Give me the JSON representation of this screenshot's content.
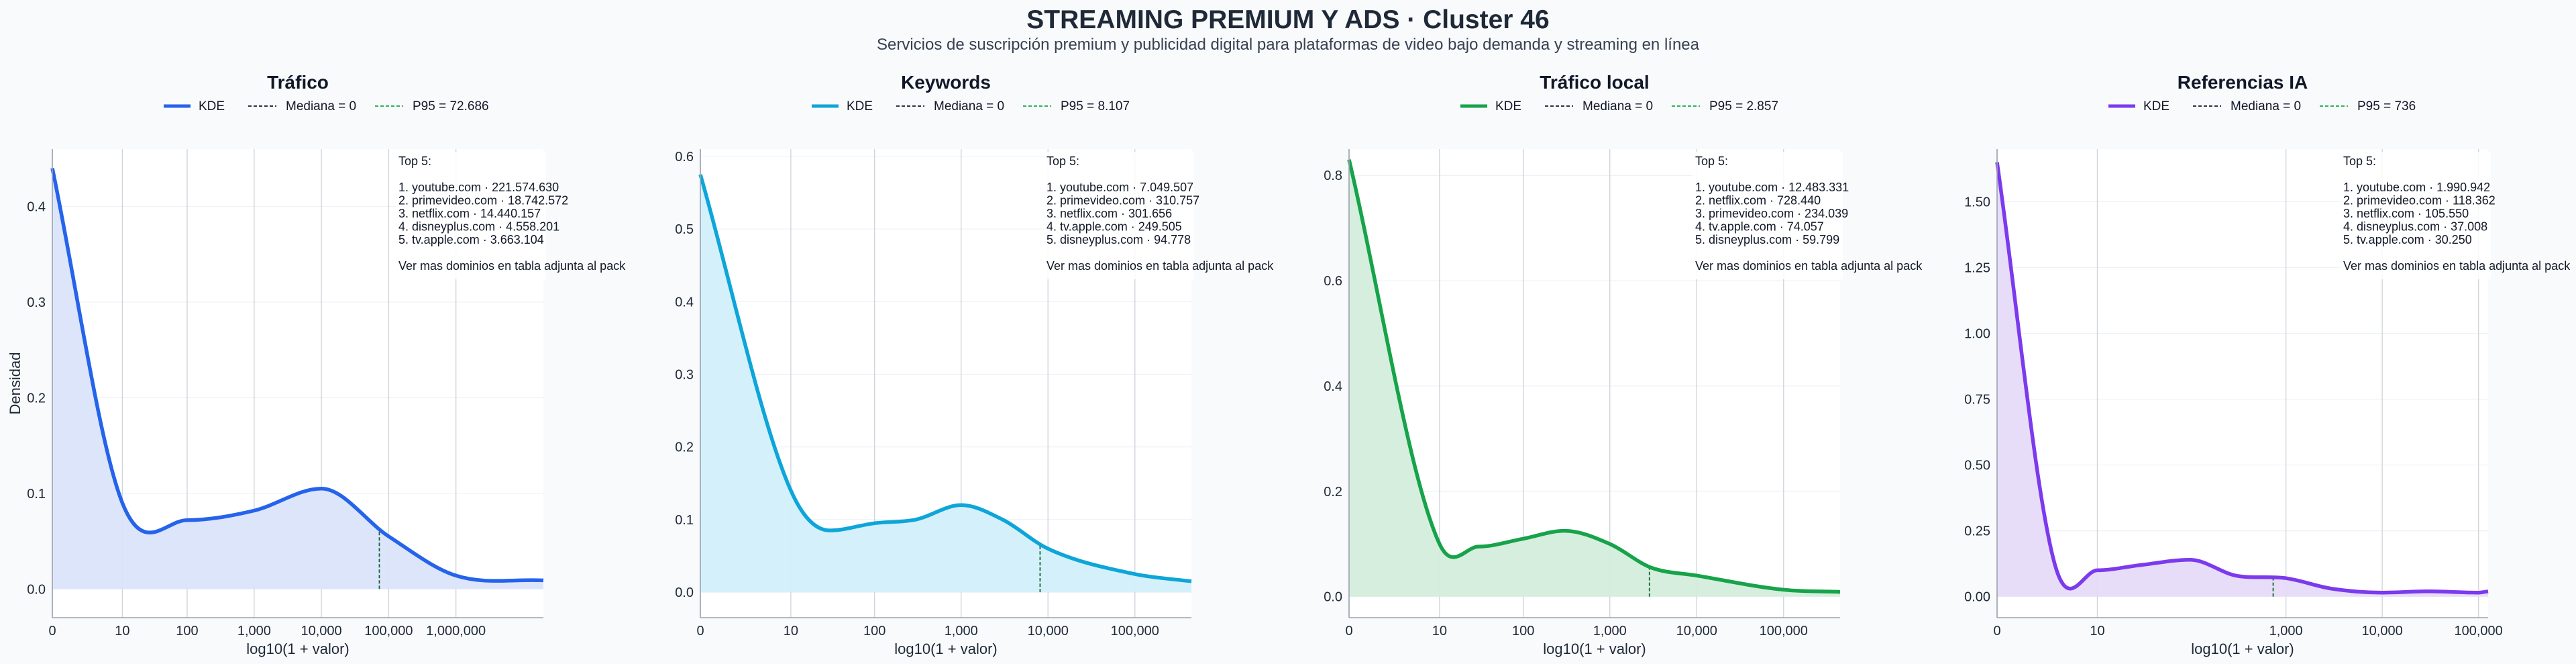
{
  "title": "STREAMING PREMIUM Y ADS · Cluster 46",
  "subtitle": "Servicios de suscripción premium y publicidad digital para plataformas de video bajo demanda y streaming en línea",
  "chart_data": [
    {
      "type": "area",
      "title": "Tráfico",
      "color": "#2563eb",
      "fill": "#dbe4fb",
      "xlabel": "log10(1 + valor)",
      "ylabel": "Densidad",
      "x_scale": "log10(1+value)",
      "xlim": [
        0,
        7.3
      ],
      "ylim": [
        -0.03,
        0.46
      ],
      "xticks": [
        0,
        10,
        100,
        1000,
        10000,
        100000,
        1000000
      ],
      "xtick_labels": [
        "0",
        "10",
        "100",
        "1,000",
        "10,000",
        "100,000",
        "1,000,000"
      ],
      "yticks": [
        0.0,
        0.1,
        0.2,
        0.3,
        0.4
      ],
      "ytick_labels": [
        "0.0",
        "0.1",
        "0.2",
        "0.3",
        "0.4"
      ],
      "legend": {
        "kde": "KDE",
        "median": "Mediana = 0",
        "p95": "P95 = 72.686"
      },
      "median": 0,
      "p95": 72686,
      "annotation": [
        "Top 5:",
        "",
        "1. youtube.com · 221.574.630",
        "2. primevideo.com · 18.742.572",
        "3. netflix.com · 14.440.157",
        "4. disneyplus.com · 4.558.201",
        "5. tv.apple.com · 3.663.104",
        "",
        "Ver mas dominios en tabla adjunta al pack"
      ],
      "x": [
        0,
        10,
        100,
        1000,
        10000,
        100000,
        1000000,
        19952623
      ],
      "y": [
        0.44,
        0.09,
        0.072,
        0.082,
        0.105,
        0.055,
        0.014,
        0.009
      ]
    },
    {
      "type": "area",
      "title": "Keywords",
      "color": "#0ea5d9",
      "fill": "#d2f0fb",
      "xlabel": "log10(1 + valor)",
      "ylabel": "",
      "x_scale": "log10(1+value)",
      "xlim": [
        0,
        5.65
      ],
      "ylim": [
        -0.035,
        0.61
      ],
      "xticks": [
        0,
        10,
        100,
        1000,
        10000,
        100000
      ],
      "xtick_labels": [
        "0",
        "10",
        "100",
        "1,000",
        "10,000",
        "100,000"
      ],
      "yticks": [
        0.0,
        0.1,
        0.2,
        0.3,
        0.4,
        0.5,
        0.6
      ],
      "ytick_labels": [
        "0.0",
        "0.1",
        "0.2",
        "0.3",
        "0.4",
        "0.5",
        "0.6"
      ],
      "legend": {
        "kde": "KDE",
        "median": "Mediana = 0",
        "p95": "P95 = 8.107"
      },
      "median": 0,
      "p95": 8107,
      "annotation": [
        "Top 5:",
        "",
        "1. youtube.com · 7.049.507",
        "2. primevideo.com · 310.757",
        "3. netflix.com · 301.656",
        "4. tv.apple.com · 249.505",
        "5. disneyplus.com · 94.778",
        "",
        "Ver mas dominios en tabla adjunta al pack"
      ],
      "x": [
        0,
        10,
        30,
        100,
        300,
        1000,
        3000,
        10000,
        100000,
        446683
      ],
      "y": [
        0.575,
        0.14,
        0.085,
        0.095,
        0.1,
        0.12,
        0.1,
        0.06,
        0.025,
        0.015
      ]
    },
    {
      "type": "area",
      "title": "Tráfico local",
      "color": "#16a34a",
      "fill": "#d4eddc",
      "xlabel": "log10(1 + valor)",
      "ylabel": "",
      "x_scale": "log10(1+value)",
      "xlim": [
        0,
        5.65
      ],
      "ylim": [
        -0.04,
        0.85
      ],
      "xticks": [
        0,
        10,
        100,
        1000,
        10000,
        100000
      ],
      "xtick_labels": [
        "0",
        "10",
        "100",
        "1,000",
        "10,000",
        "100,000"
      ],
      "yticks": [
        0.0,
        0.2,
        0.4,
        0.6,
        0.8
      ],
      "ytick_labels": [
        "0.0",
        "0.2",
        "0.4",
        "0.6",
        "0.8"
      ],
      "legend": {
        "kde": "KDE",
        "median": "Mediana = 0",
        "p95": "P95 = 2.857"
      },
      "median": 0,
      "p95": 2857,
      "annotation": [
        "Top 5:",
        "",
        "1. youtube.com · 12.483.331",
        "2. netflix.com · 728.440",
        "3. primevideo.com · 234.039",
        "4. tv.apple.com · 74.057",
        "5. disneyplus.com · 59.799",
        "",
        "Ver mas dominios en tabla adjunta al pack"
      ],
      "x": [
        0,
        10,
        30,
        100,
        300,
        1000,
        3000,
        10000,
        100000,
        446683
      ],
      "y": [
        0.83,
        0.1,
        0.095,
        0.11,
        0.125,
        0.1,
        0.055,
        0.04,
        0.013,
        0.009
      ]
    },
    {
      "type": "area",
      "title": "Referencias IA",
      "color": "#7c3aed",
      "fill": "#e6dbf8",
      "xlabel": "log10(1 + valor)",
      "ylabel": "",
      "x_scale": "log10(1+value)",
      "xlim": [
        0,
        5.1
      ],
      "ylim": [
        -0.08,
        1.7
      ],
      "xticks": [
        0,
        10,
        100,
        1000,
        10000,
        100000
      ],
      "xtick_labels": [
        "0",
        "10",
        "1,000",
        "10,000",
        "100,000"
      ],
      "xtick_values": [
        0,
        10,
        1000,
        10000,
        100000
      ],
      "yticks": [
        0.0,
        0.25,
        0.5,
        0.75,
        1.0,
        1.25,
        1.5
      ],
      "ytick_labels": [
        "0.00",
        "0.25",
        "0.50",
        "0.75",
        "1.00",
        "1.25",
        "1.50"
      ],
      "legend": {
        "kde": "KDE",
        "median": "Mediana = 0",
        "p95": "P95 = 736"
      },
      "median": 0,
      "p95": 736,
      "annotation": [
        "Top 5:",
        "",
        "1. youtube.com · 1.990.942",
        "2. primevideo.com · 118.362",
        "3. netflix.com · 105.550",
        "4. disneyplus.com · 37.008",
        "5. tv.apple.com · 30.250",
        "",
        "Ver mas dominios en tabla adjunta al pack"
      ],
      "x": [
        0,
        3,
        10,
        30,
        100,
        300,
        1000,
        3000,
        10000,
        30000,
        100000,
        125893
      ],
      "y": [
        1.65,
        0.12,
        0.1,
        0.12,
        0.14,
        0.08,
        0.07,
        0.03,
        0.015,
        0.02,
        0.015,
        0.02
      ]
    }
  ]
}
